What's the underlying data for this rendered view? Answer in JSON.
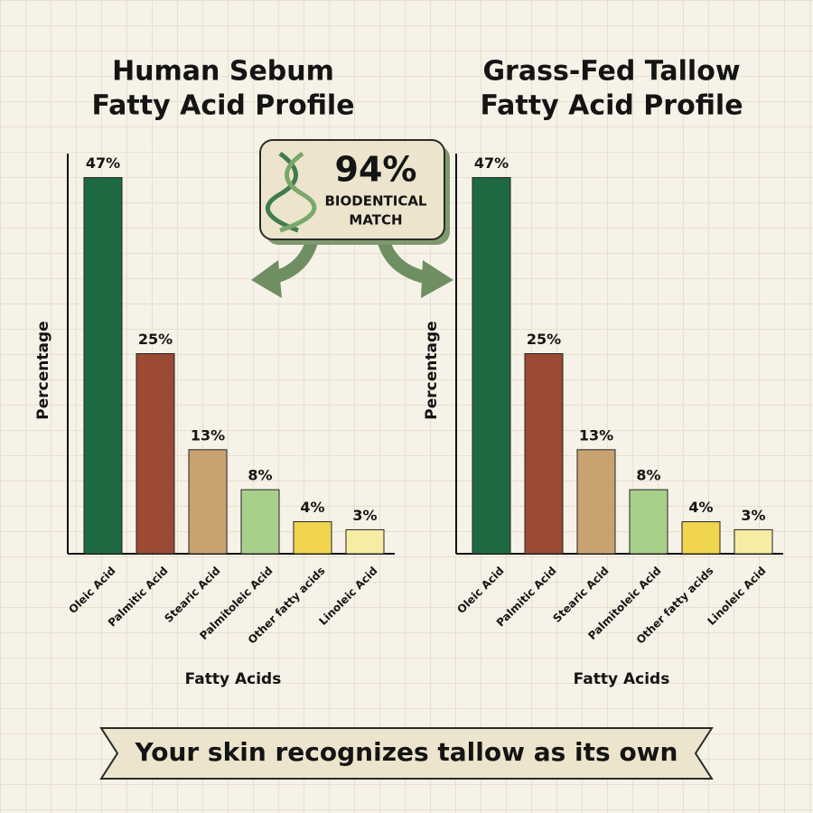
{
  "chart_data": [
    {
      "type": "bar",
      "title": [
        "Human Sebum",
        "Fatty Acid Profile"
      ],
      "xlabel": "Fatty Acids",
      "ylabel": "Percentage",
      "categories": [
        "Oleic Acid",
        "Palmitic Acid",
        "Stearic Acid",
        "Palmitoleic Acid",
        "Other fatty acids",
        "Linoleic Acid"
      ],
      "values": [
        47,
        25,
        13,
        8,
        4,
        3
      ],
      "value_labels": [
        "47%",
        "25%",
        "13%",
        "8%",
        "4%",
        "3%"
      ],
      "colors": [
        "#1e6a40",
        "#9b4a33",
        "#c9a272",
        "#a9d08a",
        "#f1d54e",
        "#f6eda4"
      ],
      "ylim": [
        0,
        50
      ]
    },
    {
      "type": "bar",
      "title": [
        "Grass-Fed Tallow",
        "Fatty Acid Profile"
      ],
      "xlabel": "Fatty Acids",
      "ylabel": "Percentage",
      "categories": [
        "Oleic Acid",
        "Palmitic Acid",
        "Stearic Acid",
        "Palmitoleic Acid",
        "Other fatty acids",
        "Linoleic Acid"
      ],
      "values": [
        47,
        25,
        13,
        8,
        4,
        3
      ],
      "value_labels": [
        "47%",
        "25%",
        "13%",
        "8%",
        "4%",
        "3%"
      ],
      "colors": [
        "#1e6a40",
        "#9b4a33",
        "#c9a272",
        "#a9d08a",
        "#f1d54e",
        "#f6eda4"
      ],
      "ylim": [
        0,
        50
      ]
    }
  ],
  "badge": {
    "headline": "94%",
    "line1": "BIODENTICAL",
    "line2": "MATCH"
  },
  "banner": "Your skin recognizes tallow as its own"
}
